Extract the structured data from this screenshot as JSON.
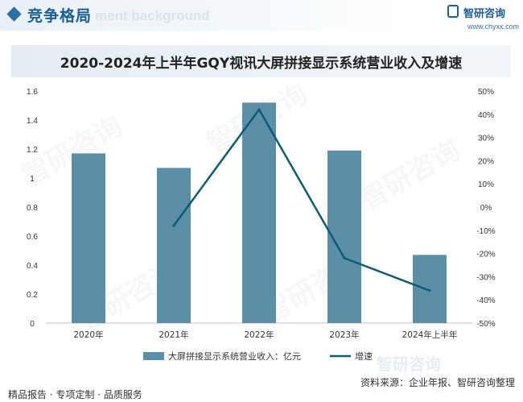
{
  "header": {
    "section_title": "竞争格局",
    "section_watermark": "ment background",
    "logo_text": "智研咨询",
    "logo_url": "www.chyxx.com"
  },
  "watermark_text": "智研咨询",
  "chart_data": {
    "type": "bar+line",
    "title": "2020-2024年上半年GQY视讯大屏拼接显示系统营业收入及增速",
    "categories": [
      "2020年",
      "2021年",
      "2022年",
      "2023年",
      "2024年上半年"
    ],
    "series": [
      {
        "name": "大屏拼接显示系统营业收入：亿元",
        "type": "bar",
        "axis": "left",
        "values": [
          1.17,
          1.07,
          1.52,
          1.19,
          0.47
        ],
        "color": "#5b8fa8"
      },
      {
        "name": "增速",
        "type": "line",
        "axis": "right",
        "values": [
          null,
          -8,
          42,
          -22,
          -36
        ],
        "color": "#0d5a78"
      }
    ],
    "ylim_left": [
      0,
      1.6
    ],
    "ylim_right": [
      -50,
      50
    ],
    "left_ticks": [
      "0",
      "0.2",
      "0.4",
      "0.6",
      "0.8",
      "1",
      "1.2",
      "1.4",
      "1.6"
    ],
    "right_ticks": [
      "-50%",
      "-40%",
      "-30%",
      "-20%",
      "-10%",
      "0%",
      "10%",
      "20%",
      "30%",
      "40%",
      "50%"
    ],
    "legend": [
      "大屏拼接显示系统营业收入：亿元",
      "增速"
    ],
    "legend_position": "bottom",
    "grid": false
  },
  "footer": {
    "left": "精品报告 · 专项定制 · 品质服务",
    "right": "资料来源：企业年报、智研咨询整理"
  }
}
